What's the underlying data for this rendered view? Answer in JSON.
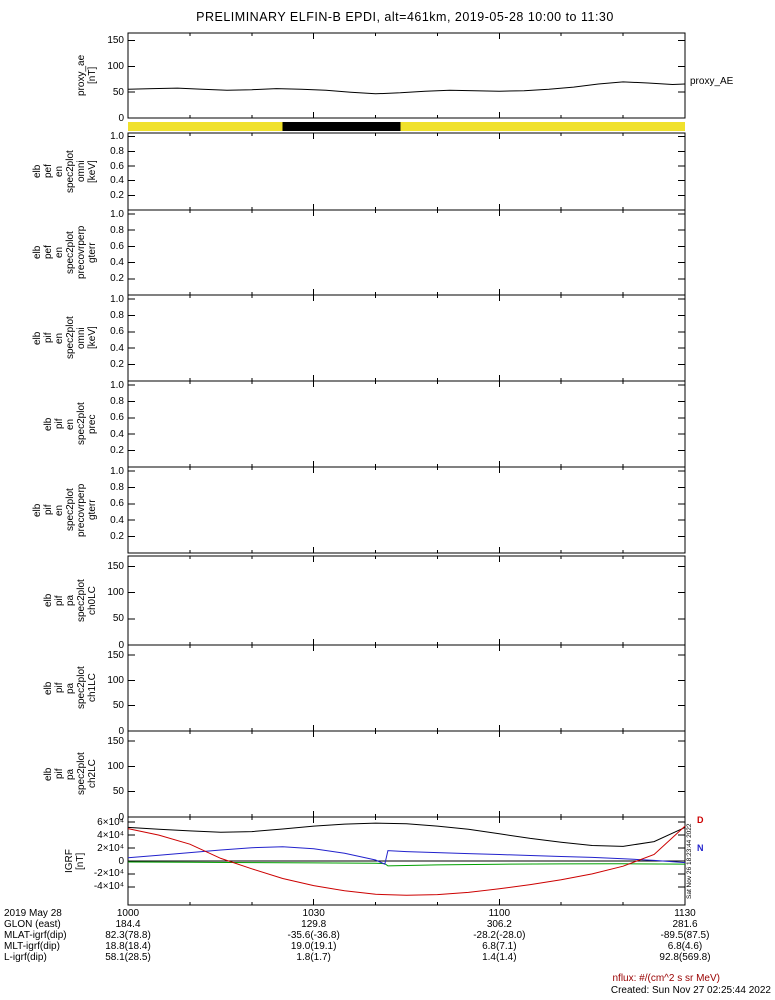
{
  "title": "PRELIMINARY ELFIN-B EPDI, alt=461km, 2019-05-28 10:00 to 11:30",
  "chart_data": {
    "type": "line",
    "subtype": "multi-panel-time-series",
    "time_range": "2019-05-28 10:00 to 11:30",
    "xaxis": {
      "unit": "minutes from 10:00",
      "xlim": [
        0,
        90
      ],
      "major_ticks_minutes": [
        0,
        30,
        60,
        90
      ],
      "minor_ticks_minutes": [
        10,
        20,
        40,
        50,
        70,
        80
      ],
      "time_labels": [
        "1000",
        "1030",
        "1100",
        "1130"
      ],
      "date_label": "2019 May 28"
    },
    "panels": [
      {
        "name": "proxy_ae",
        "type": "line",
        "ylabel_lines": [
          "proxy_ae",
          "[nT]"
        ],
        "ylim": [
          0,
          165
        ],
        "yticks": [
          {
            "v": 0,
            "label": "0"
          },
          {
            "v": 50,
            "label": "50"
          },
          {
            "v": 100,
            "label": "100"
          },
          {
            "v": 150,
            "label": "150"
          }
        ],
        "series": [
          {
            "name": "proxy_AE",
            "color": "#000000",
            "x": [
              0,
              4,
              8,
              12,
              16,
              20,
              24,
              28,
              32,
              36,
              40,
              44,
              48,
              52,
              56,
              60,
              64,
              68,
              72,
              76,
              80,
              84,
              88,
              90
            ],
            "y": [
              56,
              57,
              58,
              56,
              54,
              55,
              57,
              56,
              54,
              50,
              47,
              49,
              52,
              54,
              53,
              52,
              53,
              56,
              60,
              66,
              70,
              68,
              65,
              66
            ]
          }
        ]
      },
      {
        "name": "epd_data_availability",
        "type": "bar-strip",
        "background_color": "#f0e12c",
        "segments": [
          {
            "start": 25,
            "end": 44,
            "color": "#000000"
          }
        ]
      },
      {
        "name": "elb_pef_en_spec2plot_omni",
        "type": "empty",
        "ylabel_lines": [
          "elb",
          "pef",
          "en",
          "spec2plot",
          "omni",
          "[keV]"
        ],
        "ylim": [
          0,
          1.05
        ],
        "yticks": [
          {
            "v": 1.0,
            "label": "1.0"
          },
          {
            "v": 0.8,
            "label": "0.8"
          },
          {
            "v": 0.6,
            "label": "0.6"
          },
          {
            "v": 0.4,
            "label": "0.4"
          },
          {
            "v": 0.2,
            "label": "0.2"
          }
        ]
      },
      {
        "name": "elb_pef_en_spec2plot_precovrperp_gterr",
        "type": "empty",
        "ylabel_lines": [
          "elb",
          "pef",
          "en",
          "spec2plot",
          "precovrperp",
          "gterr"
        ],
        "ylim": [
          0,
          1.05
        ],
        "yticks": [
          {
            "v": 1.0,
            "label": "1.0"
          },
          {
            "v": 0.8,
            "label": "0.8"
          },
          {
            "v": 0.6,
            "label": "0.6"
          },
          {
            "v": 0.4,
            "label": "0.4"
          },
          {
            "v": 0.2,
            "label": "0.2"
          }
        ]
      },
      {
        "name": "elb_pif_en_spec2plot_omni",
        "type": "empty",
        "ylabel_lines": [
          "elb",
          "pif",
          "en",
          "spec2plot",
          "omni",
          "[keV]"
        ],
        "ylim": [
          0,
          1.05
        ],
        "yticks": [
          {
            "v": 1.0,
            "label": "1.0"
          },
          {
            "v": 0.8,
            "label": "0.8"
          },
          {
            "v": 0.6,
            "label": "0.6"
          },
          {
            "v": 0.4,
            "label": "0.4"
          },
          {
            "v": 0.2,
            "label": "0.2"
          }
        ]
      },
      {
        "name": "elb_pif_en_spec2plot_prec",
        "type": "empty",
        "ylabel_lines": [
          "elb",
          "pif",
          "en",
          "spec2plot",
          "prec"
        ],
        "ylim": [
          0,
          1.05
        ],
        "yticks": [
          {
            "v": 1.0,
            "label": "1.0"
          },
          {
            "v": 0.8,
            "label": "0.8"
          },
          {
            "v": 0.6,
            "label": "0.6"
          },
          {
            "v": 0.4,
            "label": "0.4"
          },
          {
            "v": 0.2,
            "label": "0.2"
          }
        ]
      },
      {
        "name": "elb_pif_en_spec2plot_precovrperp_gterr",
        "type": "empty",
        "ylabel_lines": [
          "elb",
          "pif",
          "en",
          "spec2plot",
          "precovrperp",
          "gterr"
        ],
        "ylim": [
          0,
          1.05
        ],
        "yticks": [
          {
            "v": 1.0,
            "label": "1.0"
          },
          {
            "v": 0.8,
            "label": "0.8"
          },
          {
            "v": 0.6,
            "label": "0.6"
          },
          {
            "v": 0.4,
            "label": "0.4"
          },
          {
            "v": 0.2,
            "label": "0.2"
          }
        ]
      },
      {
        "name": "elb_pif_pa_spec2plot_ch0LC",
        "type": "empty",
        "ylabel_lines": [
          "elb",
          "pif",
          "pa",
          "spec2plot",
          "ch0LC"
        ],
        "ylim": [
          0,
          170
        ],
        "yticks": [
          {
            "v": 0,
            "label": "0"
          },
          {
            "v": 50,
            "label": "50"
          },
          {
            "v": 100,
            "label": "100"
          },
          {
            "v": 150,
            "label": "150"
          }
        ]
      },
      {
        "name": "elb_pif_pa_spec2plot_ch1LC",
        "type": "empty",
        "ylabel_lines": [
          "elb",
          "pif",
          "pa",
          "spec2plot",
          "ch1LC"
        ],
        "ylim": [
          0,
          170
        ],
        "yticks": [
          {
            "v": 0,
            "label": "0"
          },
          {
            "v": 50,
            "label": "50"
          },
          {
            "v": 100,
            "label": "100"
          },
          {
            "v": 150,
            "label": "150"
          }
        ]
      },
      {
        "name": "elb_pif_pa_spec2plot_ch2LC",
        "type": "empty",
        "ylabel_lines": [
          "elb",
          "pif",
          "pa",
          "spec2plot",
          "ch2LC"
        ],
        "ylim": [
          0,
          170
        ],
        "yticks": [
          {
            "v": 0,
            "label": "0"
          },
          {
            "v": 50,
            "label": "50"
          },
          {
            "v": 100,
            "label": "100"
          },
          {
            "v": 150,
            "label": "150"
          }
        ]
      },
      {
        "name": "igrf",
        "type": "multi-line",
        "ylabel_lines": [
          "IGRF",
          "[nT]"
        ],
        "ylim": [
          -68000,
          68000
        ],
        "zero_line": true,
        "yticks": [
          {
            "v": 60000,
            "label": "6×10⁴"
          },
          {
            "v": 40000,
            "label": "4×10⁴"
          },
          {
            "v": 20000,
            "label": "2×10⁴"
          },
          {
            "v": 0,
            "label": "0"
          },
          {
            "v": -20000,
            "label": "-2×10⁴"
          },
          {
            "v": -40000,
            "label": "-4×10⁴"
          }
        ],
        "series": [
          {
            "name": "igrf_black",
            "color": "#000000",
            "x": [
              0,
              5,
              10,
              15,
              20,
              25,
              30,
              35,
              40,
              45,
              50,
              55,
              60,
              65,
              70,
              75,
              80,
              85,
              90
            ],
            "y": [
              52000,
              49000,
              46500,
              44500,
              45500,
              49500,
              54000,
              57000,
              58500,
              57500,
              54000,
              49000,
              42000,
              35000,
              29000,
              24000,
              22500,
              30000,
              52000
            ]
          },
          {
            "name": "igrf_green",
            "color": "#00a000",
            "x": [
              0,
              10,
              20,
              30,
              40,
              41.5,
              42,
              50,
              60,
              70,
              80,
              90
            ],
            "y": [
              -1500,
              -2000,
              -2500,
              -3000,
              -3500,
              -4000,
              -7500,
              -6000,
              -5000,
              -4500,
              -4300,
              -4800
            ]
          },
          {
            "name": "igrf_blue",
            "color": "#2222cc",
            "x": [
              0,
              5,
              10,
              15,
              20,
              25,
              30,
              35,
              40,
              41.5,
              42,
              45,
              50,
              55,
              60,
              65,
              70,
              75,
              80,
              85,
              90
            ],
            "y": [
              5000,
              9000,
              13000,
              17000,
              20500,
              22000,
              19000,
              12000,
              1500,
              -5000,
              16000,
              14500,
              13000,
              11500,
              10000,
              8500,
              7000,
              5500,
              3500,
              1000,
              -2500
            ]
          },
          {
            "name": "igrf_red",
            "color": "#cc0000",
            "x": [
              0,
              5,
              10,
              15,
              20,
              25,
              30,
              35,
              40,
              45,
              50,
              55,
              60,
              65,
              70,
              75,
              80,
              85,
              90
            ],
            "y": [
              50000,
              40000,
              26000,
              4000,
              -12000,
              -27000,
              -38000,
              -46000,
              -51500,
              -53000,
              -52000,
              -48500,
              -43000,
              -36500,
              -29000,
              -20000,
              -8000,
              10000,
              54000
            ]
          }
        ]
      }
    ]
  },
  "bottom_rows": [
    {
      "label": "2019 May 28",
      "values": [
        "1000",
        "1030",
        "1100",
        "1130"
      ]
    },
    {
      "label": "GLON (east)",
      "values": [
        "184.4",
        "129.8",
        "306.2",
        "281.6"
      ]
    },
    {
      "label": "MLAT-igrf(dip)",
      "values": [
        "82.3(78.8)",
        "-35.6(-36.8)",
        "-28.2(-28.0)",
        "-89.5(87.5)"
      ]
    },
    {
      "label": "MLT-igrf(dip)",
      "values": [
        "18.8(18.4)",
        "19.0(19.1)",
        "6.8(7.1)",
        "6.8(4.6)"
      ]
    },
    {
      "label": "L-igrf(dip)",
      "values": [
        "58.1(28.5)",
        "1.8(1.7)",
        "1.4(1.4)",
        "92.8(569.8)"
      ]
    }
  ],
  "side_annotations": {
    "proxy_ae_right": "proxy_AE",
    "igrf_timestamp": "Sat Nov 26 18:23:44 2022",
    "igrf_right_labels": [
      {
        "text": "D",
        "color": "#cc0000"
      },
      {
        "text": "N",
        "color": "#2222cc"
      }
    ]
  },
  "footer": {
    "nflux_note": "nflux: #/(cm^2 s sr MeV)",
    "created": "Created: Sun Nov 27 02:25:44 2022"
  }
}
